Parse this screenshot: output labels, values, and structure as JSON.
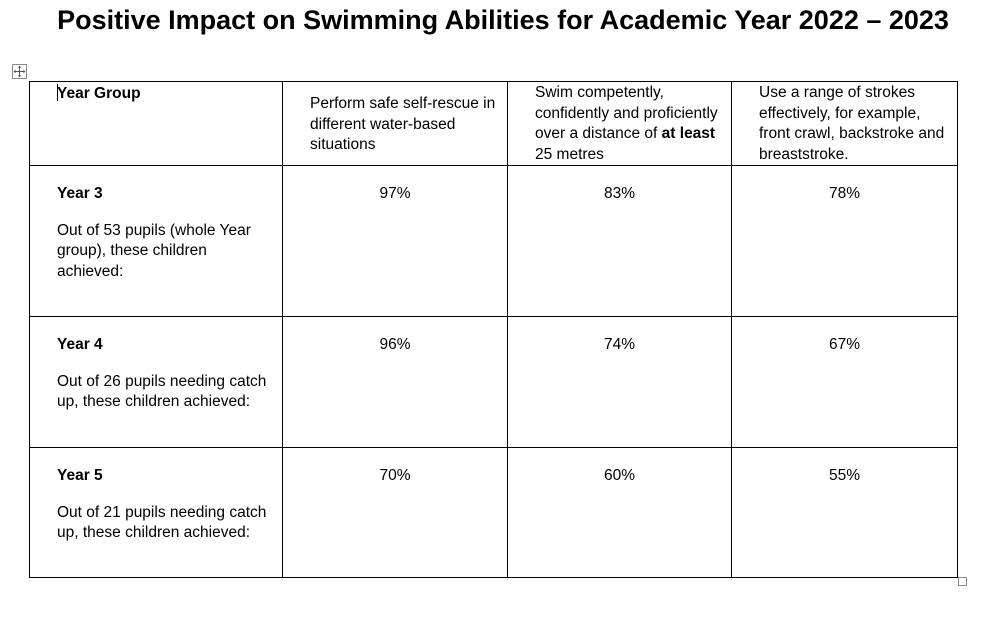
{
  "title": "Positive Impact on Swimming Abilities for Academic Year 2022 – 2023",
  "table": {
    "headers": {
      "year_group": "Year Group",
      "col1": "Perform safe self-rescue in different water-based situations",
      "col2_pre": "Swim competently, confidently and proficiently over a distance of ",
      "col2_bold": "at least",
      "col2_post": " 25 metres",
      "col3": "Use a range of strokes effectively, for example, front crawl, backstroke and breaststroke."
    },
    "rows": [
      {
        "year": "Year 3",
        "description": "Out of 53 pupils (whole Year group), these children achieved:",
        "values": [
          "97%",
          "83%",
          "78%"
        ]
      },
      {
        "year": "Year 4",
        "description": "Out of 26 pupils needing catch up, these children achieved:",
        "values": [
          "96%",
          "74%",
          "67%"
        ]
      },
      {
        "year": "Year 5",
        "description": "Out of 21 pupils needing catch up, these children achieved:",
        "values": [
          "70%",
          "60%",
          "55%"
        ]
      }
    ]
  },
  "icons": {
    "move_handle": "move-arrows-icon",
    "resize_handle": "resize-square-icon"
  }
}
